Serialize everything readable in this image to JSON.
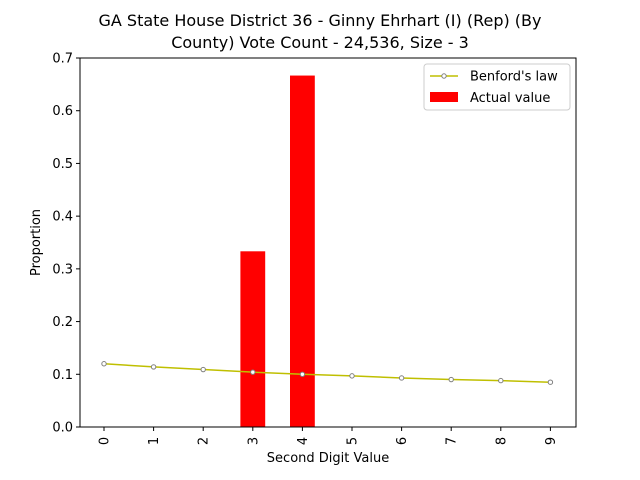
{
  "chart_data": {
    "type": "bar",
    "title": "GA State House District 36 - Ginny Ehrhart (I) (Rep) (By County) Vote Count - 24,536, Size - 3",
    "title_lines": [
      "GA State House District 36 - Ginny Ehrhart (I) (Rep) (By",
      "County) Vote Count - 24,536, Size - 3"
    ],
    "xlabel": "Second Digit Value",
    "ylabel": "Proportion",
    "categories": [
      "0",
      "1",
      "2",
      "3",
      "4",
      "5",
      "6",
      "7",
      "8",
      "9"
    ],
    "ylim": [
      0,
      0.7
    ],
    "yticks": [
      "0.0",
      "0.1",
      "0.2",
      "0.3",
      "0.4",
      "0.5",
      "0.6",
      "0.7"
    ],
    "grid": false,
    "legend_position": "top-right",
    "series": [
      {
        "name": "Benford's law",
        "type": "line",
        "color": "#bfbf00",
        "marker_edge_color": "#808080",
        "values": [
          0.12,
          0.114,
          0.109,
          0.104,
          0.1,
          0.097,
          0.093,
          0.09,
          0.088,
          0.085
        ]
      },
      {
        "name": "Actual value",
        "type": "bar",
        "color": "#ff0000",
        "values": [
          0,
          0,
          0,
          0.3333,
          0.6667,
          0,
          0,
          0,
          0,
          0
        ]
      }
    ]
  }
}
